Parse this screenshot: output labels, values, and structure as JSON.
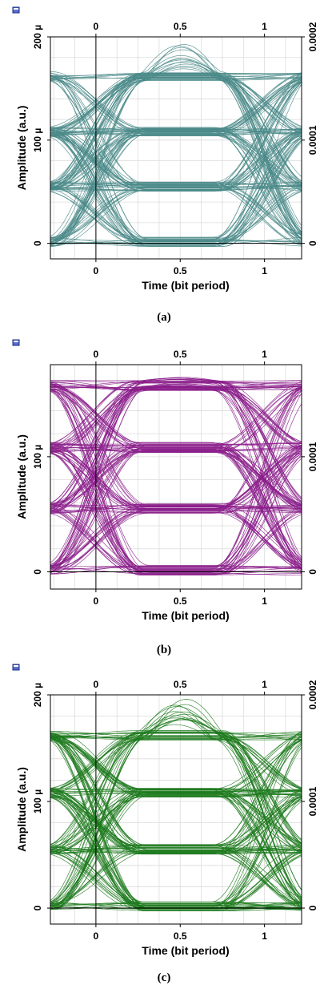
{
  "chart_data": [
    {
      "type": "line",
      "chart_kind": "eye-diagram",
      "color": "#4a8a88",
      "xlabel": "Time (bit period)",
      "ylabel": "Amplitude (a.u.)",
      "x_ticks": [
        "0",
        "0.5",
        "1"
      ],
      "x_tick_values": [
        0,
        0.5,
        1
      ],
      "top_x_ticks": [
        "0",
        "0.5",
        "1"
      ],
      "left_y_ticks": [
        "0",
        "100 µ",
        "200 µ"
      ],
      "left_y_tick_values": [
        0,
        0.0001,
        0.0002
      ],
      "right_y_ticks": [
        "0",
        "0.0001",
        "0.0002"
      ],
      "xlim": [
        -0.27,
        1.22
      ],
      "ylim": [
        -1.5e-05,
        0.0002
      ],
      "levels": [
        1.5e-06,
        5.5e-05,
        0.000108,
        0.000162
      ],
      "peak": 0.00019,
      "grid": true,
      "caption": "(a)"
    },
    {
      "type": "line",
      "chart_kind": "eye-diagram",
      "color": "#8b1e8b",
      "xlabel": "Time (bit period)",
      "ylabel": "Amplitude (a.u.)",
      "x_ticks": [
        "0",
        "0.5",
        "1"
      ],
      "x_tick_values": [
        0,
        0.5,
        1
      ],
      "top_x_ticks": [
        "0",
        "0.5",
        "1"
      ],
      "left_y_ticks": [
        "0",
        "100 µ"
      ],
      "left_y_tick_values": [
        0,
        0.0001
      ],
      "right_y_ticks": [
        "0",
        "0.0001"
      ],
      "xlim": [
        -0.27,
        1.22
      ],
      "ylim": [
        -1.5e-05,
        0.00018
      ],
      "levels": [
        1.5e-06,
        5.5e-05,
        0.000108,
        0.000162
      ],
      "peak": 0.000165,
      "grid": true,
      "caption": "(b)"
    },
    {
      "type": "line",
      "chart_kind": "eye-diagram",
      "color": "#1d7a1d",
      "xlabel": "Time (bit period)",
      "ylabel": "Amplitude (a.u.)",
      "x_ticks": [
        "0",
        "0.5",
        "1"
      ],
      "x_tick_values": [
        0,
        0.5,
        1
      ],
      "top_x_ticks": [
        "0",
        "0.5",
        "1"
      ],
      "left_y_ticks": [
        "0",
        "100 µ",
        "200 µ"
      ],
      "left_y_tick_values": [
        0,
        0.0001,
        0.0002
      ],
      "right_y_ticks": [
        "0",
        "0.0001",
        "0.0002"
      ],
      "xlim": [
        -0.27,
        1.22
      ],
      "ylim": [
        -1.5e-05,
        0.0002
      ],
      "levels": [
        1.5e-06,
        5.5e-05,
        0.000108,
        0.000162
      ],
      "peak": 0.00019,
      "grid": true,
      "caption": "(c)"
    }
  ]
}
